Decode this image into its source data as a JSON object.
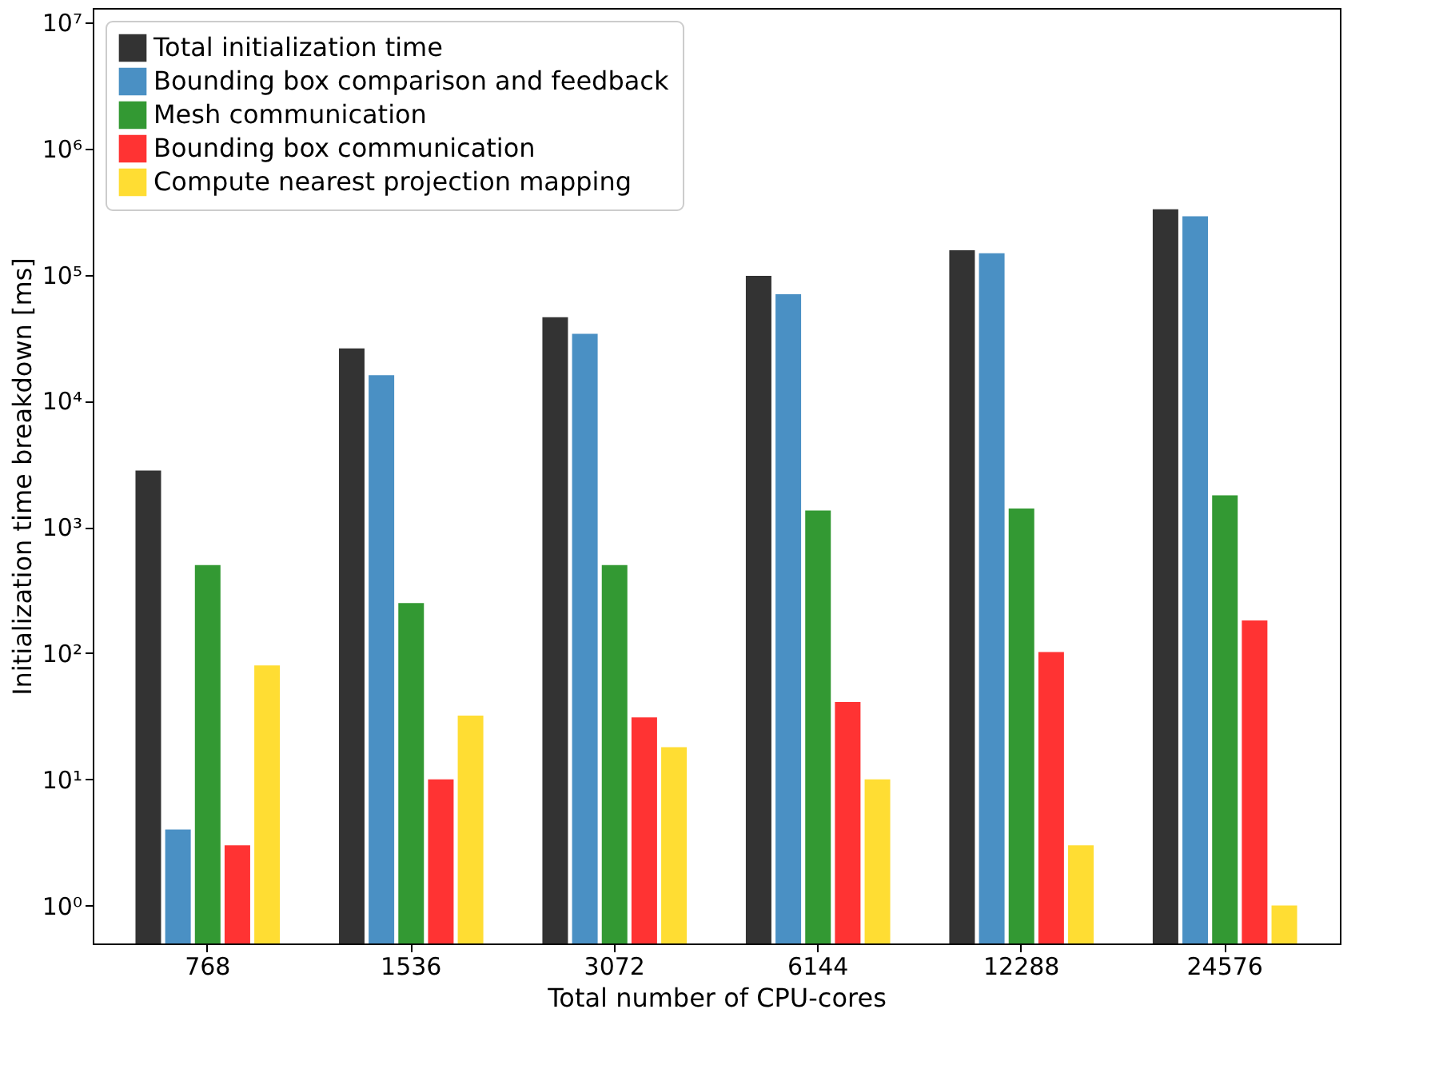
{
  "chart_data": {
    "type": "bar",
    "xlabel": "Total number of CPU-cores",
    "ylabel": "Initialization time breakdown [ms]",
    "categories": [
      "768",
      "1536",
      "3072",
      "6144",
      "12288",
      "24576"
    ],
    "series": [
      {
        "name": "Total initialization time",
        "color": "#333333",
        "values": [
          2800,
          26000,
          46000,
          98000,
          156000,
          330000
        ]
      },
      {
        "name": "Bounding box comparison and feedback",
        "color": "#4a90c4",
        "values": [
          4,
          16000,
          34000,
          70000,
          148000,
          290000
        ]
      },
      {
        "name": "Mesh communication",
        "color": "#339933",
        "values": [
          500,
          250,
          500,
          1350,
          1400,
          1780
        ]
      },
      {
        "name": "Bounding box communication",
        "color": "#ff3333",
        "values": [
          3,
          10,
          31,
          41,
          102,
          182
        ]
      },
      {
        "name": "Compute nearest projection mapping",
        "color": "#ffdd33",
        "values": [
          80,
          32,
          18,
          10,
          3,
          1
        ]
      }
    ],
    "log": "y",
    "ylim": [
      0.5,
      13000000
    ],
    "yticks": [
      {
        "value": 1,
        "label": "10⁰"
      },
      {
        "value": 10,
        "label": "10¹"
      },
      {
        "value": 100,
        "label": "10²"
      },
      {
        "value": 1000,
        "label": "10³"
      },
      {
        "value": 10000,
        "label": "10⁴"
      },
      {
        "value": 100000,
        "label": "10⁵"
      },
      {
        "value": 1000000,
        "label": "10⁶"
      },
      {
        "value": 10000000,
        "label": "10⁷"
      }
    ],
    "legend": "top left",
    "grid": false
  }
}
